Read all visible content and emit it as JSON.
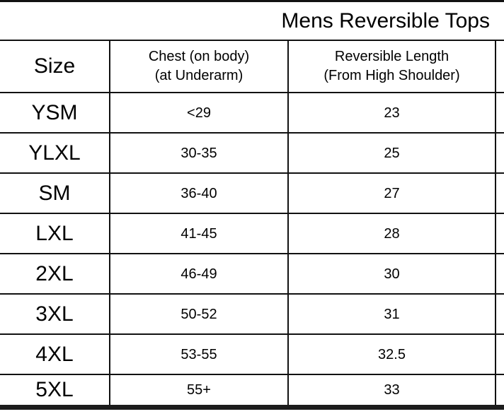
{
  "title": "Mens Reversible Tops",
  "table": {
    "header": {
      "size": "Size",
      "chest_line1": "Chest (on body)",
      "chest_line2": "(at Underarm)",
      "length_line1": "Reversible Length",
      "length_line2": "(From High Shoulder)"
    },
    "rows": [
      {
        "size": "YSM",
        "chest": "<29",
        "length": "23"
      },
      {
        "size": "YLXL",
        "chest": "30-35",
        "length": "25"
      },
      {
        "size": "SM",
        "chest": "36-40",
        "length": "27"
      },
      {
        "size": "LXL",
        "chest": "41-45",
        "length": "28"
      },
      {
        "size": "2XL",
        "chest": "46-49",
        "length": "30"
      },
      {
        "size": "3XL",
        "chest": "50-52",
        "length": "31"
      },
      {
        "size": "4XL",
        "chest": "53-55",
        "length": "32.5"
      },
      {
        "size": "5XL",
        "chest": "55+",
        "length": "33"
      }
    ]
  },
  "chart_data": {
    "type": "table",
    "title": "Mens Reversible Tops",
    "columns": [
      "Size",
      "Chest (on body) (at Underarm)",
      "Reversible Length (From High Shoulder)"
    ],
    "rows": [
      [
        "YSM",
        "<29",
        23
      ],
      [
        "YLXL",
        "30-35",
        25
      ],
      [
        "SM",
        "36-40",
        27
      ],
      [
        "LXL",
        "41-45",
        28
      ],
      [
        "2XL",
        "46-49",
        30
      ],
      [
        "3XL",
        "50-52",
        31
      ],
      [
        "4XL",
        "53-55",
        32.5
      ],
      [
        "5XL",
        "55+",
        33
      ]
    ],
    "layout": {
      "title_alignment": "right",
      "grid": true,
      "cropped_edges": [
        "left",
        "right"
      ],
      "border_color": "#111111",
      "background": "#ffffff",
      "text_color": "#000000"
    }
  }
}
